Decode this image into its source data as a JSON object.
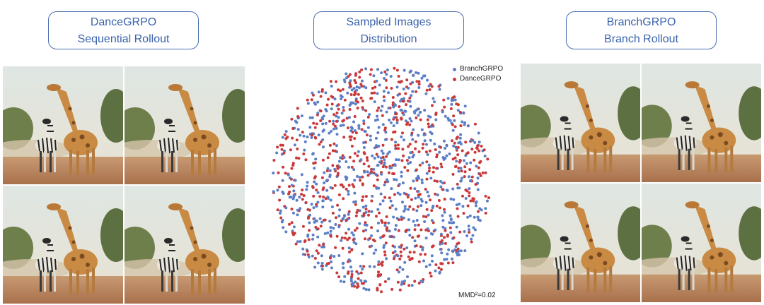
{
  "left": {
    "title_line1": "DanceGRPO",
    "title_line2": "Sequential Rollout"
  },
  "middle": {
    "title_line1": "Sampled Images",
    "title_line2": "Distribution"
  },
  "right": {
    "title_line1": "BranchGRPO",
    "title_line2": "Branch Rollout"
  },
  "legend": [
    {
      "label": "BranchGRPO",
      "color": "#5b7fc7"
    },
    {
      "label": "DanceGRPO",
      "color": "#c9393a"
    }
  ],
  "mmd_label": "MMD²=0.02",
  "colors": {
    "accent": "#3a63ab",
    "branch": "#5b7fc7",
    "dance": "#c9393a"
  }
}
